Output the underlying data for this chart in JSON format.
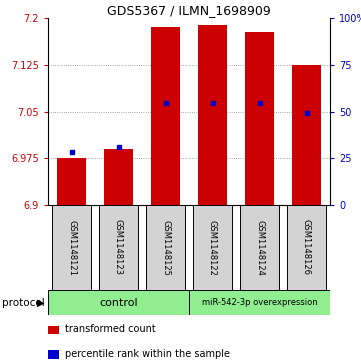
{
  "title": "GDS5367 / ILMN_1698909",
  "samples": [
    "GSM1148121",
    "GSM1148123",
    "GSM1148125",
    "GSM1148122",
    "GSM1148124",
    "GSM1148126"
  ],
  "bar_bottoms": [
    6.9,
    6.9,
    6.9,
    6.9,
    6.9,
    6.9
  ],
  "bar_tops": [
    6.975,
    6.99,
    7.185,
    7.188,
    7.178,
    7.125
  ],
  "blue_markers": [
    6.985,
    6.993,
    7.063,
    7.063,
    7.063,
    7.048
  ],
  "ylim": [
    6.9,
    7.2
  ],
  "yticks_left": [
    6.9,
    6.975,
    7.05,
    7.125,
    7.2
  ],
  "yticks_right_vals": [
    6.9,
    6.975,
    7.05,
    7.125,
    7.2
  ],
  "yticks_right_labels": [
    "0",
    "25",
    "50",
    "75",
    "100%"
  ],
  "bar_color": "#cc0000",
  "blue_color": "#0000cc",
  "control_label": "control",
  "mir_label": "miR-542-3p overexpression",
  "protocol_label": "protocol",
  "grid_yticks": [
    6.975,
    7.05,
    7.125
  ],
  "legend_red_label": "transformed count",
  "legend_blue_label": "percentile rank within the sample",
  "bar_width": 0.6,
  "sample_box_color": "#d3d3d3",
  "protocol_box_color": "#90ee90",
  "title_fontsize": 9,
  "tick_fontsize": 7,
  "label_fontsize": 7
}
